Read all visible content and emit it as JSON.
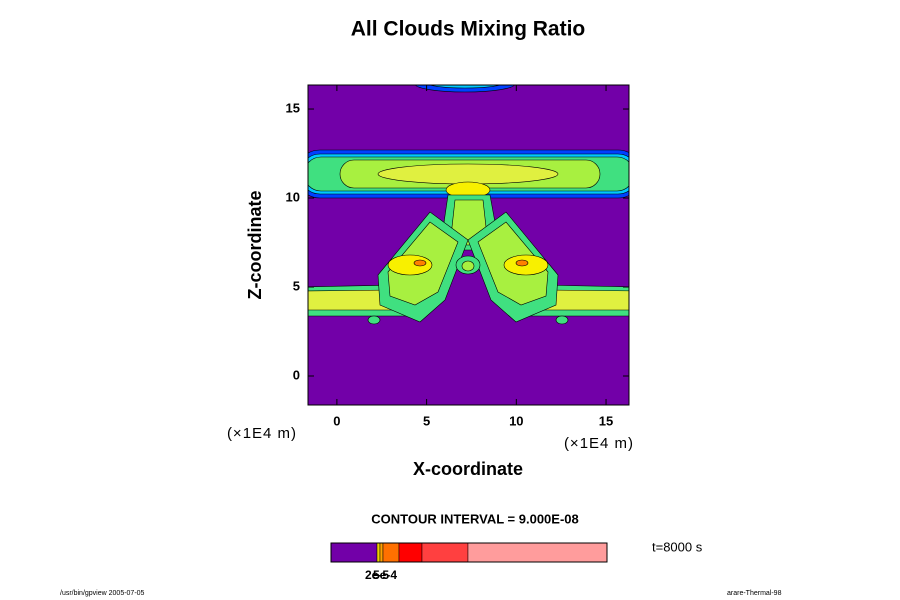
{
  "chart_data": {
    "type": "contour",
    "title": "All Clouds Mixing Ratio",
    "x_label": "X-coordinate",
    "y_label": "Z-coordinate",
    "x_unit": "(×1E4 m)",
    "y_unit": "(×1E4 m)",
    "xlim": [
      -1.61,
      16.28
    ],
    "ylim": [
      -1.63,
      16.35
    ],
    "xticks": [
      0,
      5,
      10,
      15
    ],
    "yticks": [
      0,
      5,
      10,
      15
    ],
    "background_color": "#7200a8",
    "contour_interval": "CONTOUR INTERVAL = 9.000E-08",
    "time_label": "t=8000 s",
    "colorbar_colors": [
      "#7200a8",
      "#f0d000",
      "#ffa000",
      "#ff7000",
      "#ff0000",
      "#ff4040",
      "#ff9c9c"
    ],
    "colorbar_labels": [
      "2e-5",
      "5e-4"
    ],
    "footer_left": "/usr/bin/gpview 2005-07-05",
    "footer_right": "arare-Thermal-98"
  }
}
